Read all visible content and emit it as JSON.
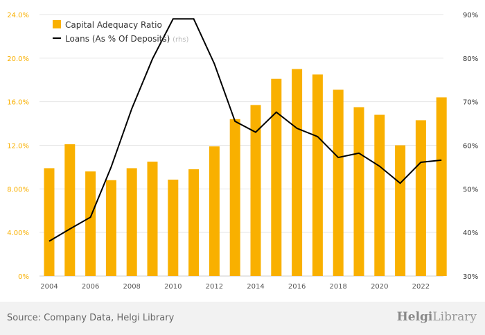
{
  "chart_data": {
    "type": "bar+line",
    "categories": [
      2004,
      2005,
      2006,
      2007,
      2008,
      2009,
      2010,
      2011,
      2012,
      2013,
      2014,
      2015,
      2016,
      2017,
      2018,
      2019,
      2020,
      2021,
      2022,
      2023
    ],
    "series": [
      {
        "name": "Capital Adequacy Ratio",
        "type": "bar",
        "axis": "left",
        "color": "#f9b000",
        "values": [
          9.9,
          12.1,
          9.6,
          8.8,
          9.9,
          10.5,
          8.85,
          9.8,
          11.9,
          14.4,
          15.7,
          18.1,
          19.0,
          18.5,
          17.1,
          15.5,
          14.8,
          12.0,
          14.3,
          16.4
        ]
      },
      {
        "name": "Loans (As % Of Deposits)",
        "suffix": "(rhs)",
        "type": "line",
        "axis": "right",
        "color": "#000000",
        "values": [
          38.0,
          40.8,
          43.5,
          55.0,
          68.4,
          79.8,
          89.0,
          89.0,
          78.7,
          65.5,
          63.0,
          67.6,
          63.9,
          62.0,
          57.2,
          58.2,
          55.2,
          51.3,
          56.1,
          56.6
        ]
      }
    ],
    "left_axis": {
      "ylim": [
        0,
        24
      ],
      "ticks": [
        "0%",
        "4.00%",
        "8.00%",
        "12.0%",
        "16.0%",
        "20.0%",
        "24.0%"
      ],
      "color": "#f9b000"
    },
    "right_axis": {
      "ylim": [
        30,
        90
      ],
      "ticks": [
        "30%",
        "40%",
        "50%",
        "60%",
        "70%",
        "80%",
        "90%"
      ]
    },
    "x_tick_labels": [
      "2004",
      "2006",
      "2008",
      "2010",
      "2012",
      "2014",
      "2016",
      "2018",
      "2020",
      "2022"
    ],
    "legend": "top-left",
    "grid": true
  },
  "footer": {
    "source": "Source: Company Data, Helgi Library",
    "logo_bold": "Helgi",
    "logo_rest": "Library"
  }
}
